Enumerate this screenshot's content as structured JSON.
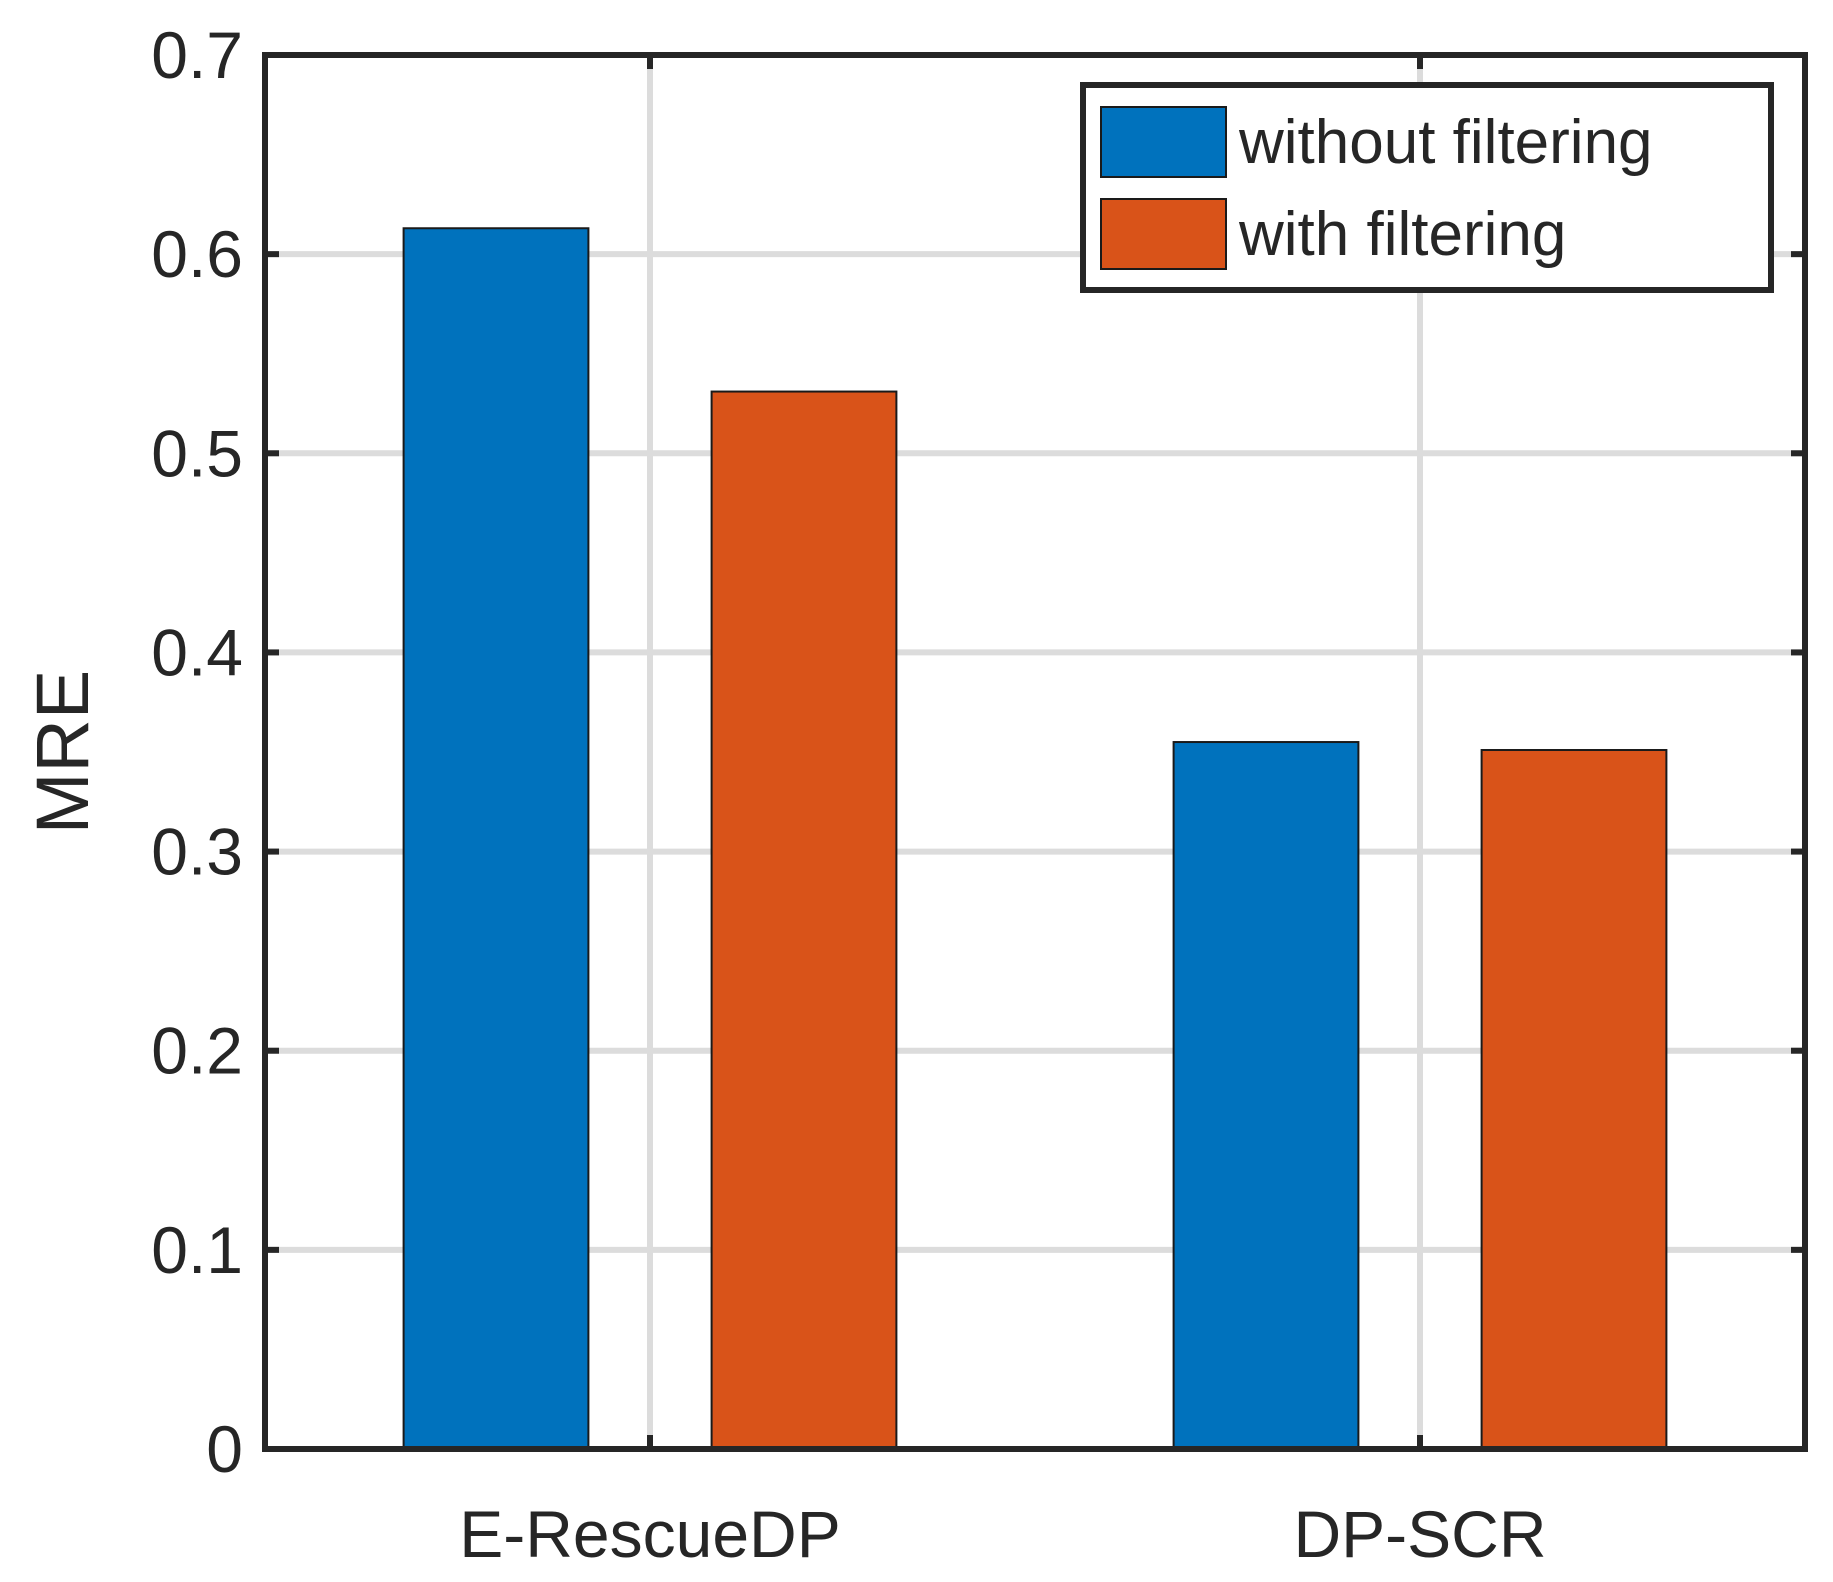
{
  "chart_data": {
    "type": "bar",
    "title": "",
    "xlabel": "",
    "ylabel": "MRE",
    "ylim": [
      0,
      0.7
    ],
    "yticks": [
      0,
      0.1,
      0.2,
      0.3,
      0.4,
      0.5,
      0.6,
      0.7
    ],
    "ytick_labels": [
      "0",
      "0.1",
      "0.2",
      "0.3",
      "0.4",
      "0.5",
      "0.6",
      "0.7"
    ],
    "categories": [
      "E-RescueDP",
      "DP-SCR"
    ],
    "grid": true,
    "legend_position": "top-right",
    "series": [
      {
        "name": "without filtering",
        "color": "#0072BD",
        "values": [
          0.613,
          0.355
        ]
      },
      {
        "name": "with filtering",
        "color": "#D95319",
        "values": [
          0.531,
          0.351
        ]
      }
    ]
  }
}
